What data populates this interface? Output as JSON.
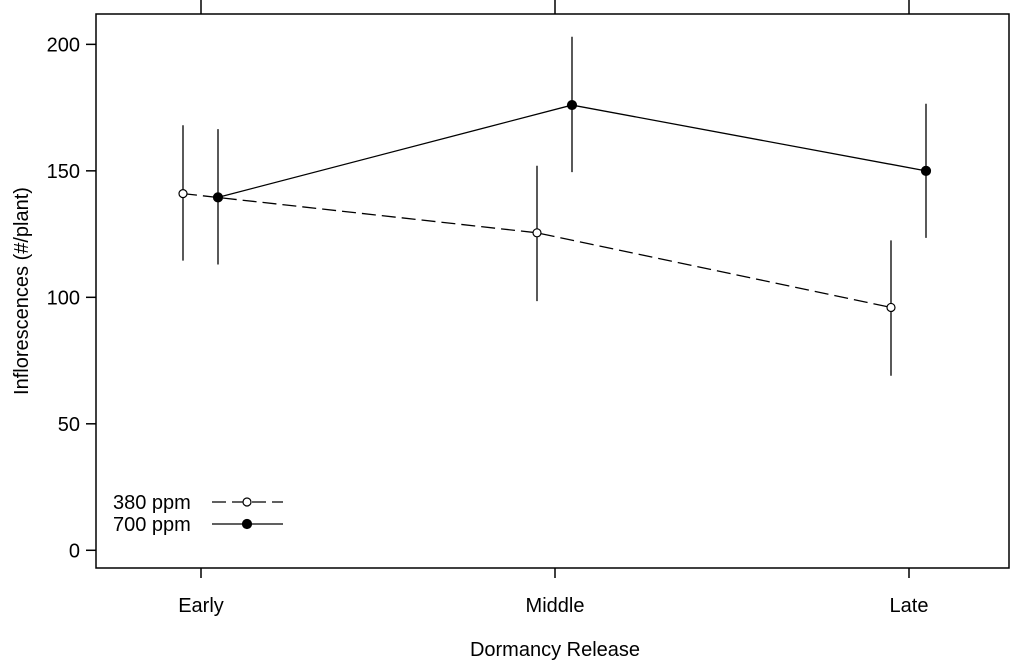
{
  "chart_data": {
    "type": "line",
    "title": "",
    "xlabel": "Dormancy Release",
    "ylabel": "Inflorescences (#/plant)",
    "categories": [
      "Early",
      "Middle",
      "Late"
    ],
    "ylim": [
      -7,
      212
    ],
    "yticks": [
      0,
      50,
      100,
      150,
      200
    ],
    "grid": false,
    "legend_position": "bottom-left",
    "series": [
      {
        "name": "380 ppm",
        "marker": "open-circle",
        "line_style": "dashed",
        "color": "#000000",
        "values": [
          141,
          125.5,
          96
        ],
        "error_low": [
          114.5,
          98.5,
          69
        ],
        "error_high": [
          168,
          152,
          122.5
        ]
      },
      {
        "name": "700 ppm",
        "marker": "filled-circle",
        "line_style": "solid",
        "color": "#000000",
        "values": [
          139.5,
          176,
          150
        ],
        "error_low": [
          113,
          149.5,
          123.5
        ],
        "error_high": [
          166.5,
          203,
          176.5
        ]
      }
    ]
  }
}
